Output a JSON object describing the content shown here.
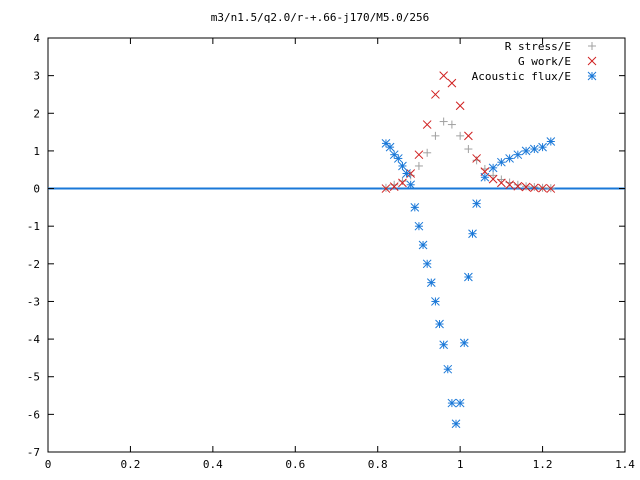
{
  "chart_data": {
    "type": "scatter",
    "title": "m3/n1.5/q2.0/r-+.66-j170/M5.0/256",
    "xlabel": "",
    "ylabel": "",
    "xlim": [
      0,
      1.4
    ],
    "ylim": [
      -7,
      4
    ],
    "x_ticks": [
      "0",
      "0.2",
      "0.4",
      "0.6",
      "0.8",
      "1",
      "1.2",
      "1.4"
    ],
    "y_ticks": [
      "4",
      "3",
      "2",
      "1",
      "0",
      "-1",
      "-2",
      "-3",
      "-4",
      "-5",
      "-6",
      "-7"
    ],
    "grid": false,
    "legend_position": "top-right",
    "series": [
      {
        "name": "R stress/E",
        "marker": "plus",
        "color": "#a0a0a0",
        "x": [
          0.82,
          0.84,
          0.86,
          0.88,
          0.9,
          0.92,
          0.94,
          0.96,
          0.98,
          1.0,
          1.02,
          1.04,
          1.06,
          1.08,
          1.1,
          1.12,
          1.14,
          1.16,
          1.18,
          1.2,
          1.22
        ],
        "y": [
          0.02,
          0.1,
          0.2,
          0.35,
          0.6,
          0.95,
          1.4,
          1.78,
          1.7,
          1.4,
          1.05,
          0.75,
          0.52,
          0.35,
          0.24,
          0.16,
          0.1,
          0.06,
          0.04,
          0.02,
          0.01
        ]
      },
      {
        "name": "G work/E",
        "marker": "cross",
        "color": "#d02020",
        "x": [
          0.82,
          0.84,
          0.86,
          0.88,
          0.9,
          0.92,
          0.94,
          0.96,
          0.98,
          1.0,
          1.02,
          1.04,
          1.06,
          1.08,
          1.1,
          1.12,
          1.14,
          1.16,
          1.18,
          1.2,
          1.22
        ],
        "y": [
          0.0,
          0.05,
          0.15,
          0.4,
          0.9,
          1.7,
          2.5,
          3.0,
          2.8,
          2.2,
          1.4,
          0.8,
          0.45,
          0.25,
          0.15,
          0.1,
          0.06,
          0.04,
          0.02,
          0.01,
          0.0
        ]
      },
      {
        "name": "Acoustic flux/E",
        "marker": "star",
        "color": "#1a78d8",
        "x": [
          0.82,
          0.83,
          0.84,
          0.85,
          0.86,
          0.87,
          0.88,
          0.89,
          0.9,
          0.91,
          0.92,
          0.93,
          0.94,
          0.95,
          0.96,
          0.97,
          0.98,
          0.99,
          1.0,
          1.01,
          1.02,
          1.03,
          1.04,
          1.06,
          1.08,
          1.1,
          1.12,
          1.14,
          1.16,
          1.18,
          1.2,
          1.22
        ],
        "y": [
          1.2,
          1.1,
          0.9,
          0.8,
          0.6,
          0.4,
          0.1,
          -0.5,
          -1.0,
          -1.5,
          -2.0,
          -2.5,
          -3.0,
          -3.6,
          -4.15,
          -4.8,
          -5.7,
          -6.25,
          -5.7,
          -4.1,
          -2.35,
          -1.2,
          -0.4,
          0.3,
          0.55,
          0.7,
          0.8,
          0.9,
          1.0,
          1.05,
          1.1,
          1.25
        ]
      }
    ]
  }
}
